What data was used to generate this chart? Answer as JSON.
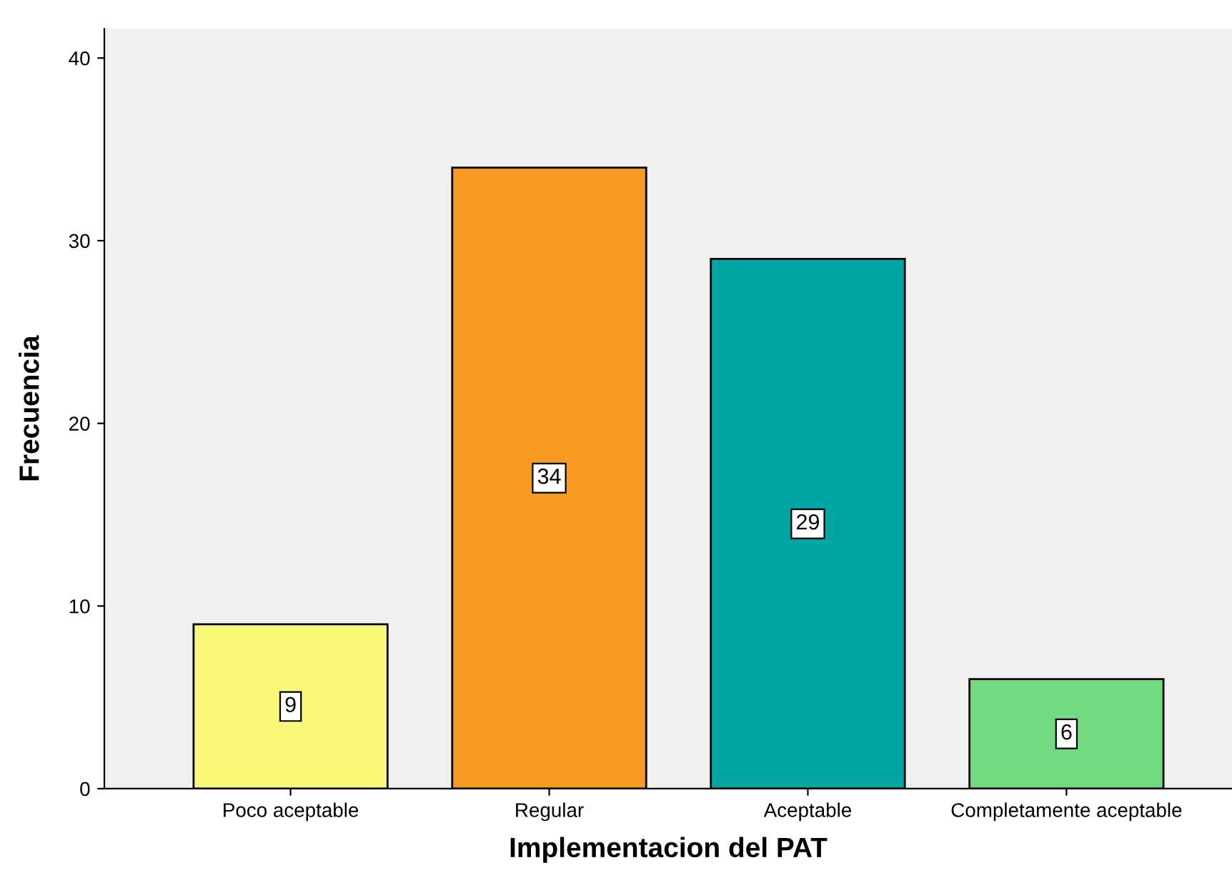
{
  "chart_data": {
    "type": "bar",
    "xlabel": "Implementacion del PAT",
    "ylabel": "Frecuencia",
    "categories": [
      "Poco aceptable",
      "Regular",
      "Aceptable",
      "Completamente aceptable"
    ],
    "values": [
      9,
      34,
      29,
      6
    ],
    "colors": [
      "#faf878",
      "#f89a22",
      "#00a6a2",
      "#70db80"
    ],
    "ylim": [
      0,
      41.6
    ],
    "yticks": [
      0,
      10,
      20,
      30,
      40
    ],
    "grid": false,
    "legend": false,
    "data_labels": true
  }
}
